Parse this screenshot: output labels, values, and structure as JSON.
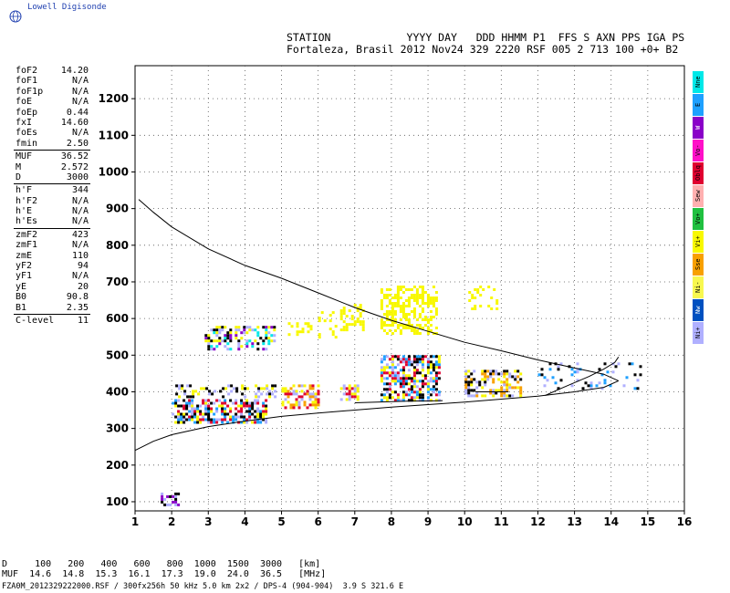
{
  "logo": {
    "text": "Lowell Digisonde"
  },
  "header": {
    "line1": "STATION            YYYY DAY   DDD HHMM P1  FFS S AXN PPS IGA PS",
    "line2": "Fortaleza, Brasil 2012 Nov24 329 2220 RSF 005 2 713 100 +0+ B2"
  },
  "params": {
    "group1": [
      {
        "label": "foF2",
        "value": "14.20"
      },
      {
        "label": "foF1",
        "value": "N/A"
      },
      {
        "label": "foF1p",
        "value": "N/A"
      },
      {
        "label": "foE",
        "value": "N/A"
      },
      {
        "label": "foEp",
        "value": "0.44"
      },
      {
        "label": "fxI",
        "value": "14.60"
      },
      {
        "label": "foEs",
        "value": "N/A"
      },
      {
        "label": "fmin",
        "value": "2.50"
      }
    ],
    "group2": [
      {
        "label": "MUF",
        "value": "36.52"
      },
      {
        "label": "M",
        "value": "2.572"
      },
      {
        "label": "D",
        "value": "3000"
      }
    ],
    "group3": [
      {
        "label": "h'F",
        "value": "344"
      },
      {
        "label": "h'F2",
        "value": "N/A"
      },
      {
        "label": "h'E",
        "value": "N/A"
      },
      {
        "label": "h'Es",
        "value": "N/A"
      }
    ],
    "group4": [
      {
        "label": "zmF2",
        "value": "423"
      },
      {
        "label": "zmF1",
        "value": "N/A"
      },
      {
        "label": "zmE",
        "value": "110"
      },
      {
        "label": "yF2",
        "value": "94"
      },
      {
        "label": "yF1",
        "value": "N/A"
      },
      {
        "label": "yE",
        "value": "20"
      },
      {
        "label": "B0",
        "value": "90.8"
      },
      {
        "label": "B1",
        "value": "2.35"
      }
    ],
    "group5": [
      {
        "label": "C-level",
        "value": "11"
      }
    ]
  },
  "legend": [
    {
      "label": "Nne",
      "color": "#00e8e8"
    },
    {
      "label": "E",
      "color": "#1ea0ff"
    },
    {
      "label": "W",
      "color": "#8a00c8"
    },
    {
      "label": "Vo-",
      "color": "#ff10c8"
    },
    {
      "label": "Oblq",
      "color": "#e00030"
    },
    {
      "label": "Sew",
      "color": "#ffb0b0"
    },
    {
      "label": "Vo+",
      "color": "#20c040"
    },
    {
      "label": "Vi+",
      "color": "#f8f800"
    },
    {
      "label": "Sse",
      "color": "#f8a000"
    },
    {
      "label": "Ni-",
      "color": "#f8f850"
    },
    {
      "label": "Nw",
      "color": "#0050c0"
    },
    {
      "label": "Ni+",
      "color": "#b0b0ff"
    }
  ],
  "muf_table": {
    "line1": "D     100   200   400   600   800  1000  1500  3000   [km]",
    "line2": "MUF  14.6  14.8  15.3  16.1  17.3  19.0  24.0  36.5   [MHz]"
  },
  "footer": "FZA0M_2012329222000.RSF / 300fx256h 50 kHz 5.0 km 2x2 / DPS-4 (904-904)  3.9 S 321.6 E",
  "chart_data": {
    "type": "scatter",
    "title": "",
    "xlabel": "",
    "ylabel": "",
    "xlim": [
      1,
      16
    ],
    "ylim": [
      75,
      1290
    ],
    "x_ticks": [
      1,
      2,
      3,
      4,
      5,
      6,
      7,
      8,
      9,
      10,
      11,
      12,
      13,
      14,
      15,
      16
    ],
    "y_ticks": [
      100,
      200,
      300,
      400,
      500,
      600,
      700,
      800,
      900,
      1000,
      1100,
      1200
    ],
    "grid": true,
    "series": [
      {
        "kind": "line",
        "points": [
          [
            1,
            240
          ],
          [
            1.5,
            265
          ],
          [
            2,
            283
          ],
          [
            3,
            305
          ],
          [
            4,
            320
          ],
          [
            5,
            333
          ],
          [
            6,
            342
          ],
          [
            7,
            350
          ],
          [
            8,
            358
          ],
          [
            9,
            365
          ],
          [
            10,
            372
          ],
          [
            11,
            380
          ],
          [
            12,
            388
          ],
          [
            13,
            400
          ],
          [
            13.8,
            412
          ],
          [
            14.2,
            430
          ]
        ]
      },
      {
        "kind": "line",
        "points": [
          [
            14.2,
            430
          ],
          [
            13.8,
            448
          ],
          [
            13,
            465
          ],
          [
            12,
            487
          ],
          [
            11,
            512
          ],
          [
            10,
            535
          ],
          [
            9,
            565
          ],
          [
            8,
            595
          ],
          [
            7,
            630
          ],
          [
            6,
            670
          ],
          [
            5,
            710
          ],
          [
            4,
            745
          ],
          [
            3,
            790
          ],
          [
            2,
            850
          ],
          [
            1.5,
            890
          ],
          [
            1.1,
            925
          ]
        ]
      },
      {
        "kind": "line",
        "points": [
          [
            7,
            370
          ],
          [
            8,
            373
          ],
          [
            8.6,
            375
          ],
          [
            9,
            375
          ],
          [
            9.4,
            376
          ]
        ]
      },
      {
        "kind": "line",
        "points": [
          [
            12.2,
            390
          ],
          [
            12.6,
            408
          ],
          [
            13,
            425
          ],
          [
            13.4,
            442
          ],
          [
            13.8,
            462
          ],
          [
            14.1,
            480
          ],
          [
            14.2,
            495
          ]
        ]
      },
      {
        "kind": "line",
        "points": [
          [
            10.3,
            400
          ],
          [
            10.6,
            400
          ],
          [
            10.9,
            400
          ],
          [
            11.2,
            400
          ]
        ]
      },
      {
        "kind": "echo",
        "clusters": [
          {
            "x": [
              2.0,
              4.6
            ],
            "y": [
              320,
              380
            ],
            "colors": [
              "#e00030",
              "#f8f800",
              "#000000",
              "#1ea0ff",
              "#b0b0ff"
            ],
            "density": 0.65
          },
          {
            "x": [
              2.1,
              4.8
            ],
            "y": [
              390,
              420
            ],
            "colors": [
              "#f8f800",
              "#b0b0ff",
              "#000000"
            ],
            "density": 0.35
          },
          {
            "x": [
              2.9,
              4.8
            ],
            "y": [
              520,
              580
            ],
            "colors": [
              "#000000",
              "#00e8e8",
              "#f8f800",
              "#b0b0ff",
              "#8a00c8"
            ],
            "density": 0.45
          },
          {
            "x": [
              5.0,
              6.0
            ],
            "y": [
              360,
              420
            ],
            "colors": [
              "#f8a000",
              "#f8f800",
              "#b0b0ff",
              "#e00030"
            ],
            "density": 0.5
          },
          {
            "x": [
              5.1,
              5.8
            ],
            "y": [
              560,
              590
            ],
            "colors": [
              "#f8f800"
            ],
            "density": 0.3
          },
          {
            "x": [
              6.0,
              6.6
            ],
            "y": [
              550,
              620
            ],
            "colors": [
              "#f8f800"
            ],
            "density": 0.25
          },
          {
            "x": [
              6.6,
              7.1
            ],
            "y": [
              380,
              420
            ],
            "colors": [
              "#b0b0ff",
              "#e00030",
              "#f8f800"
            ],
            "density": 0.45
          },
          {
            "x": [
              6.6,
              7.2
            ],
            "y": [
              570,
              640
            ],
            "colors": [
              "#f8f800"
            ],
            "density": 0.35
          },
          {
            "x": [
              7.7,
              9.3
            ],
            "y": [
              380,
              500
            ],
            "colors": [
              "#b0b0ff",
              "#f8f800",
              "#e00030",
              "#000000",
              "#1ea0ff"
            ],
            "density": 0.6
          },
          {
            "x": [
              7.7,
              9.2
            ],
            "y": [
              560,
              690
            ],
            "colors": [
              "#f8f800"
            ],
            "density": 0.55
          },
          {
            "x": [
              10.0,
              11.5
            ],
            "y": [
              390,
              460
            ],
            "colors": [
              "#f8f800",
              "#b0b0ff",
              "#000000",
              "#f8a000"
            ],
            "density": 0.5
          },
          {
            "x": [
              10.1,
              10.9
            ],
            "y": [
              630,
              690
            ],
            "colors": [
              "#f8f800"
            ],
            "density": 0.2
          },
          {
            "x": [
              12.0,
              14.8
            ],
            "y": [
              410,
              480
            ],
            "colors": [
              "#b0b0ff",
              "#000000",
              "#1ea0ff"
            ],
            "density": 0.15
          },
          {
            "x": [
              1.7,
              2.2
            ],
            "y": [
              95,
              125
            ],
            "colors": [
              "#b0b0ff",
              "#000000",
              "#8a00c8"
            ],
            "density": 0.5
          }
        ]
      }
    ]
  }
}
